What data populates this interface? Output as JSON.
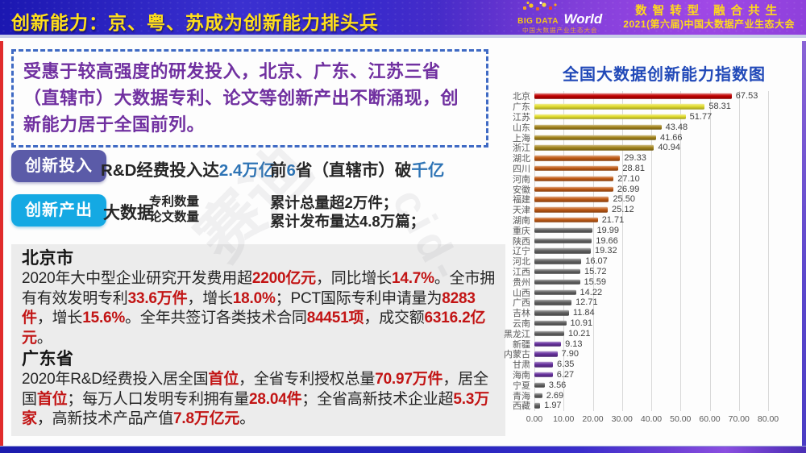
{
  "header": {
    "title": "创新能力：京、粤、苏成为创新能力排头兵",
    "logo": {
      "big_data": "BIG DATA",
      "world": "World",
      "sub": "中国大数据产业生态大会"
    },
    "slogan_line1": "数智转型 融合共生",
    "slogan_line2": "2021(第六届)中国大数据产业生态大会"
  },
  "summary_box": {
    "text": "受惠于较高强度的研发投入，北京、广东、江苏三省（直辖市）大数据专利、论文等创新产出不断涌现，创新能力居于全国前列。"
  },
  "investment": {
    "badge": "创新投入",
    "stat1": [
      {
        "t": "R&D经费投入达"
      },
      {
        "t": "2.4万亿",
        "cls": "blue"
      }
    ],
    "stat2": [
      {
        "t": "前"
      },
      {
        "t": "6",
        "cls": "blue"
      },
      {
        "t": "省（直辖市）破"
      },
      {
        "t": "千亿",
        "cls": "blue"
      }
    ]
  },
  "output": {
    "badge": "创新产出",
    "label": "大数据",
    "metrics": [
      "专利数量",
      "论文数量"
    ],
    "results": [
      "累计总量超2万件；",
      "累计发布量达4.8万篇；"
    ]
  },
  "beijing": {
    "title": "北京市",
    "body": [
      {
        "t": "2020年大中型企业研究开发费用超"
      },
      {
        "t": "2200亿元",
        "cls": "hl"
      },
      {
        "t": "，同比增长"
      },
      {
        "t": "14.7%",
        "cls": "hl"
      },
      {
        "t": "。全市拥有有效发明专利"
      },
      {
        "t": "33.6万件",
        "cls": "hl"
      },
      {
        "t": "，增长"
      },
      {
        "t": "18.0%",
        "cls": "hl"
      },
      {
        "t": "；PCT国际专利申请量为"
      },
      {
        "t": "8283件",
        "cls": "hl"
      },
      {
        "t": "，增长"
      },
      {
        "t": "15.6%",
        "cls": "hl"
      },
      {
        "t": "。全年共签订各类技术合同"
      },
      {
        "t": "84451项",
        "cls": "hl"
      },
      {
        "t": "，成交额"
      },
      {
        "t": "6316.2亿元",
        "cls": "hl"
      },
      {
        "t": "。"
      }
    ]
  },
  "guangdong": {
    "title": "广东省",
    "body": [
      {
        "t": "2020年R&D经费投入居全国"
      },
      {
        "t": "首位",
        "cls": "hl"
      },
      {
        "t": "，全省专利授权总量"
      },
      {
        "t": "70.97万件",
        "cls": "hl"
      },
      {
        "t": "，居全国"
      },
      {
        "t": "首位",
        "cls": "hl"
      },
      {
        "t": "；每万人口发明专利拥有量"
      },
      {
        "t": "28.04件",
        "cls": "hl"
      },
      {
        "t": "；全省高新技术企业超"
      },
      {
        "t": "5.3万家",
        "cls": "hl"
      },
      {
        "t": "，高新技术产品产值"
      },
      {
        "t": "7.8万亿元",
        "cls": "hl"
      },
      {
        "t": "。"
      }
    ]
  },
  "chart_data": {
    "type": "bar",
    "orientation": "horizontal",
    "title": "全国大数据创新能力指数图",
    "xlim": [
      0,
      80
    ],
    "x_ticks": [
      "0.00",
      "10.00",
      "20.00",
      "30.00",
      "40.00",
      "50.00",
      "60.00",
      "70.00",
      "80.00"
    ],
    "grid": true,
    "items": [
      {
        "label": "北京",
        "value": 67.53,
        "color": "#c00000"
      },
      {
        "label": "广东",
        "value": 58.31,
        "color": "#e2dd2e"
      },
      {
        "label": "江苏",
        "value": 51.77,
        "color": "#e2dd2e"
      },
      {
        "label": "山东",
        "value": 43.48,
        "color": "#a3841c"
      },
      {
        "label": "上海",
        "value": 41.66,
        "color": "#a3841c"
      },
      {
        "label": "浙江",
        "value": 40.94,
        "color": "#a3841c"
      },
      {
        "label": "湖北",
        "value": 29.33,
        "color": "#c05a15"
      },
      {
        "label": "四川",
        "value": 28.81,
        "color": "#c05a15"
      },
      {
        "label": "河南",
        "value": 27.1,
        "color": "#c05a15"
      },
      {
        "label": "安徽",
        "value": 26.99,
        "color": "#c05a15"
      },
      {
        "label": "福建",
        "value": 25.5,
        "color": "#c05a15"
      },
      {
        "label": "天津",
        "value": 25.12,
        "color": "#c05a15"
      },
      {
        "label": "湖南",
        "value": 21.71,
        "color": "#c05a15"
      },
      {
        "label": "重庆",
        "value": 19.99,
        "color": "#616161"
      },
      {
        "label": "陕西",
        "value": 19.66,
        "color": "#616161"
      },
      {
        "label": "辽宁",
        "value": 19.32,
        "color": "#616161"
      },
      {
        "label": "河北",
        "value": 16.07,
        "color": "#616161"
      },
      {
        "label": "江西",
        "value": 15.72,
        "color": "#616161"
      },
      {
        "label": "贵州",
        "value": 15.59,
        "color": "#616161"
      },
      {
        "label": "山西",
        "value": 14.22,
        "color": "#616161"
      },
      {
        "label": "广西",
        "value": 12.71,
        "color": "#616161"
      },
      {
        "label": "吉林",
        "value": 11.84,
        "color": "#616161"
      },
      {
        "label": "云南",
        "value": 10.91,
        "color": "#616161"
      },
      {
        "label": "黑龙江",
        "value": 10.21,
        "color": "#616161"
      },
      {
        "label": "新疆",
        "value": 9.13,
        "color": "#67319e"
      },
      {
        "label": "内蒙古",
        "value": 7.9,
        "color": "#67319e"
      },
      {
        "label": "甘肃",
        "value": 6.35,
        "color": "#67319e"
      },
      {
        "label": "海南",
        "value": 6.27,
        "color": "#67319e"
      },
      {
        "label": "宁夏",
        "value": 3.56,
        "color": "#616161"
      },
      {
        "label": "青海",
        "value": 2.69,
        "color": "#616161"
      },
      {
        "label": "西藏",
        "value": 1.97,
        "color": "#616161"
      }
    ]
  },
  "watermarks": [
    "赛迪",
    "cid-"
  ]
}
